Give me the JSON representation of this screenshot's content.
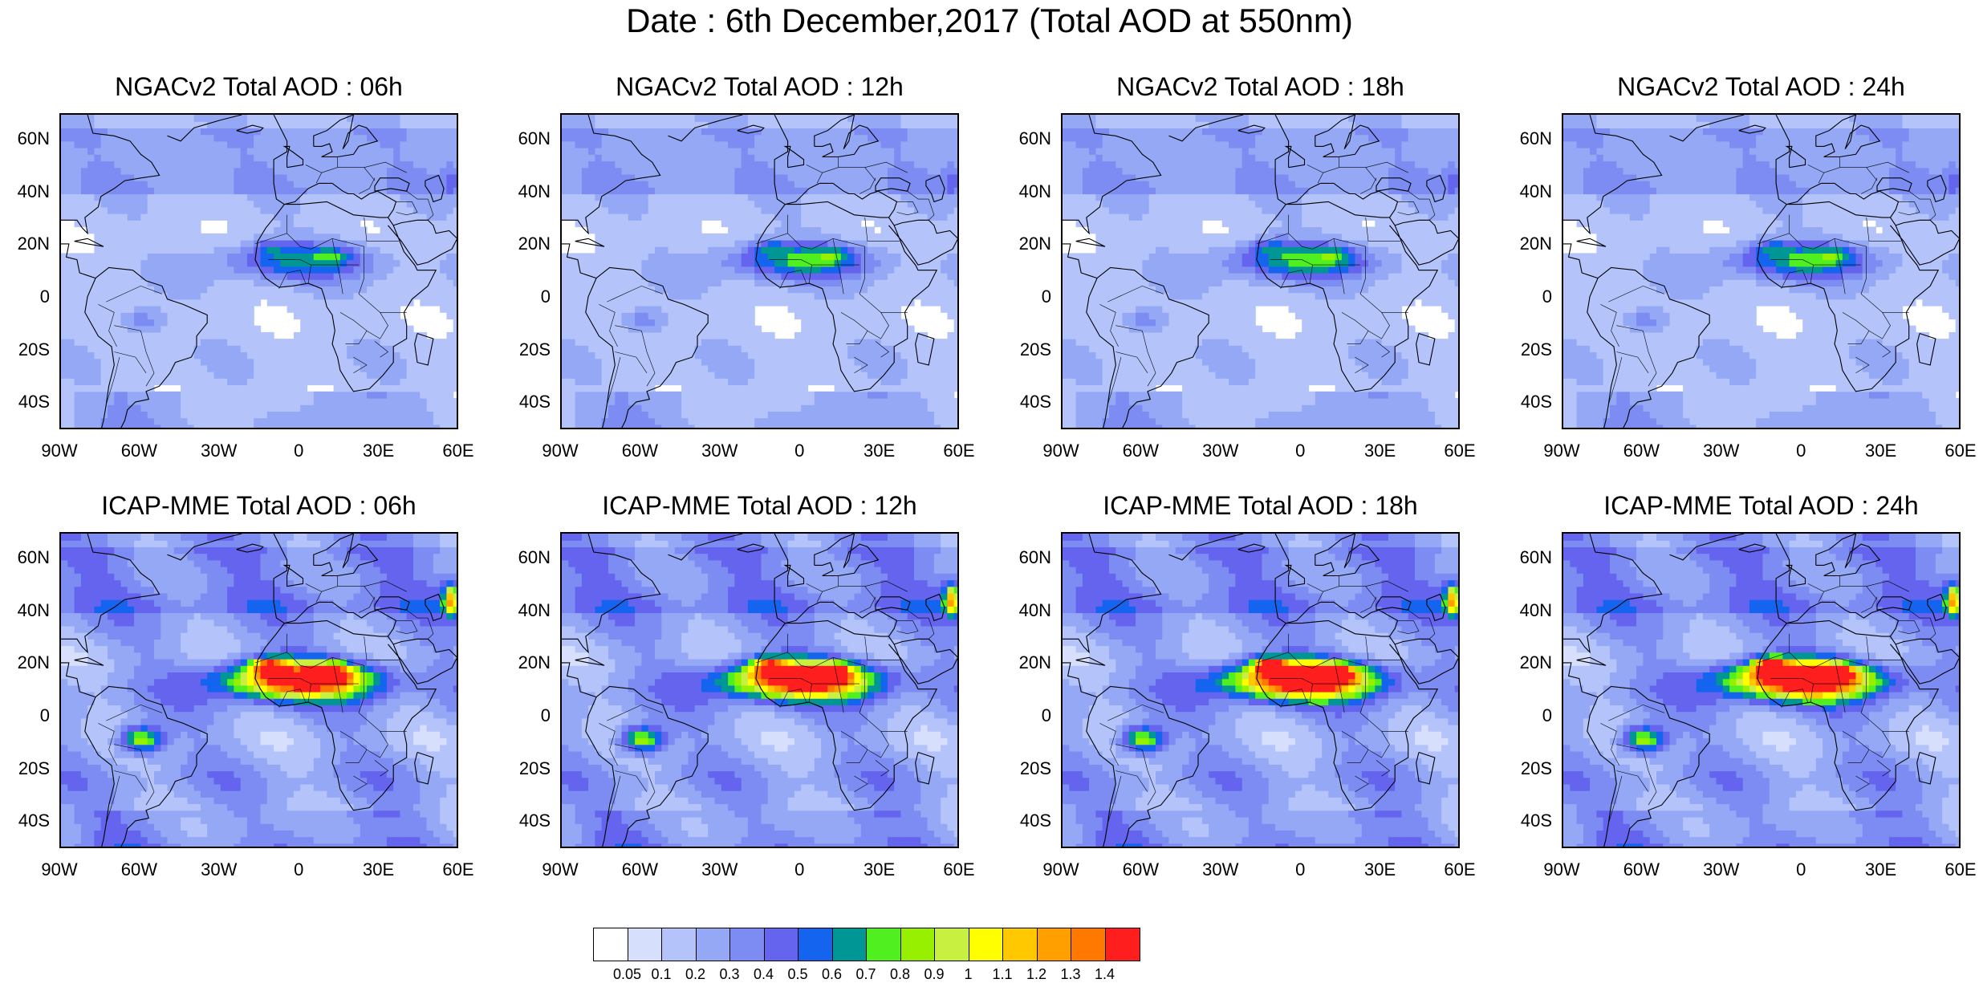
{
  "title": "Date : 6th December,2017 (Total AOD at 550nm)",
  "panels": [
    {
      "title": "NGACv2 Total AOD : 06h",
      "model": "NGACv2",
      "hour": "06h",
      "intensity": 0.55
    },
    {
      "title": "NGACv2 Total AOD : 12h",
      "model": "NGACv2",
      "hour": "12h",
      "intensity": 0.6
    },
    {
      "title": "NGACv2 Total AOD : 18h",
      "model": "NGACv2",
      "hour": "18h",
      "intensity": 0.62
    },
    {
      "title": "NGACv2 Total AOD : 24h",
      "model": "NGACv2",
      "hour": "24h",
      "intensity": 0.6
    },
    {
      "title": "ICAP-MME Total AOD : 06h",
      "model": "ICAP-MME",
      "hour": "06h",
      "intensity": 1.0
    },
    {
      "title": "ICAP-MME Total AOD : 12h",
      "model": "ICAP-MME",
      "hour": "12h",
      "intensity": 1.05
    },
    {
      "title": "ICAP-MME Total AOD : 18h",
      "model": "ICAP-MME",
      "hour": "18h",
      "intensity": 1.1
    },
    {
      "title": "ICAP-MME Total AOD : 24h",
      "model": "ICAP-MME",
      "hour": "24h",
      "intensity": 1.15
    }
  ],
  "lat_labels": [
    "60N",
    "40N",
    "20N",
    "0",
    "20S",
    "40S"
  ],
  "lon_labels": [
    "90W",
    "60W",
    "30W",
    "0",
    "30E",
    "60E"
  ],
  "map_extent": {
    "lon": [
      -90,
      60
    ],
    "lat": [
      -50,
      70
    ]
  },
  "colorbar": {
    "labels": [
      "0.05",
      "0.1",
      "0.2",
      "0.3",
      "0.4",
      "0.5",
      "0.6",
      "0.7",
      "0.8",
      "0.9",
      "1",
      "1.1",
      "1.2",
      "1.3",
      "1.4"
    ],
    "colors": [
      "#ffffff",
      "#d6e0fc",
      "#b4c4fa",
      "#94a8f6",
      "#7c8cf2",
      "#6464ee",
      "#1464f0",
      "#009696",
      "#50f020",
      "#96f000",
      "#c8f040",
      "#ffff00",
      "#ffc800",
      "#ffa000",
      "#ff7800",
      "#ff1e1e"
    ]
  }
}
